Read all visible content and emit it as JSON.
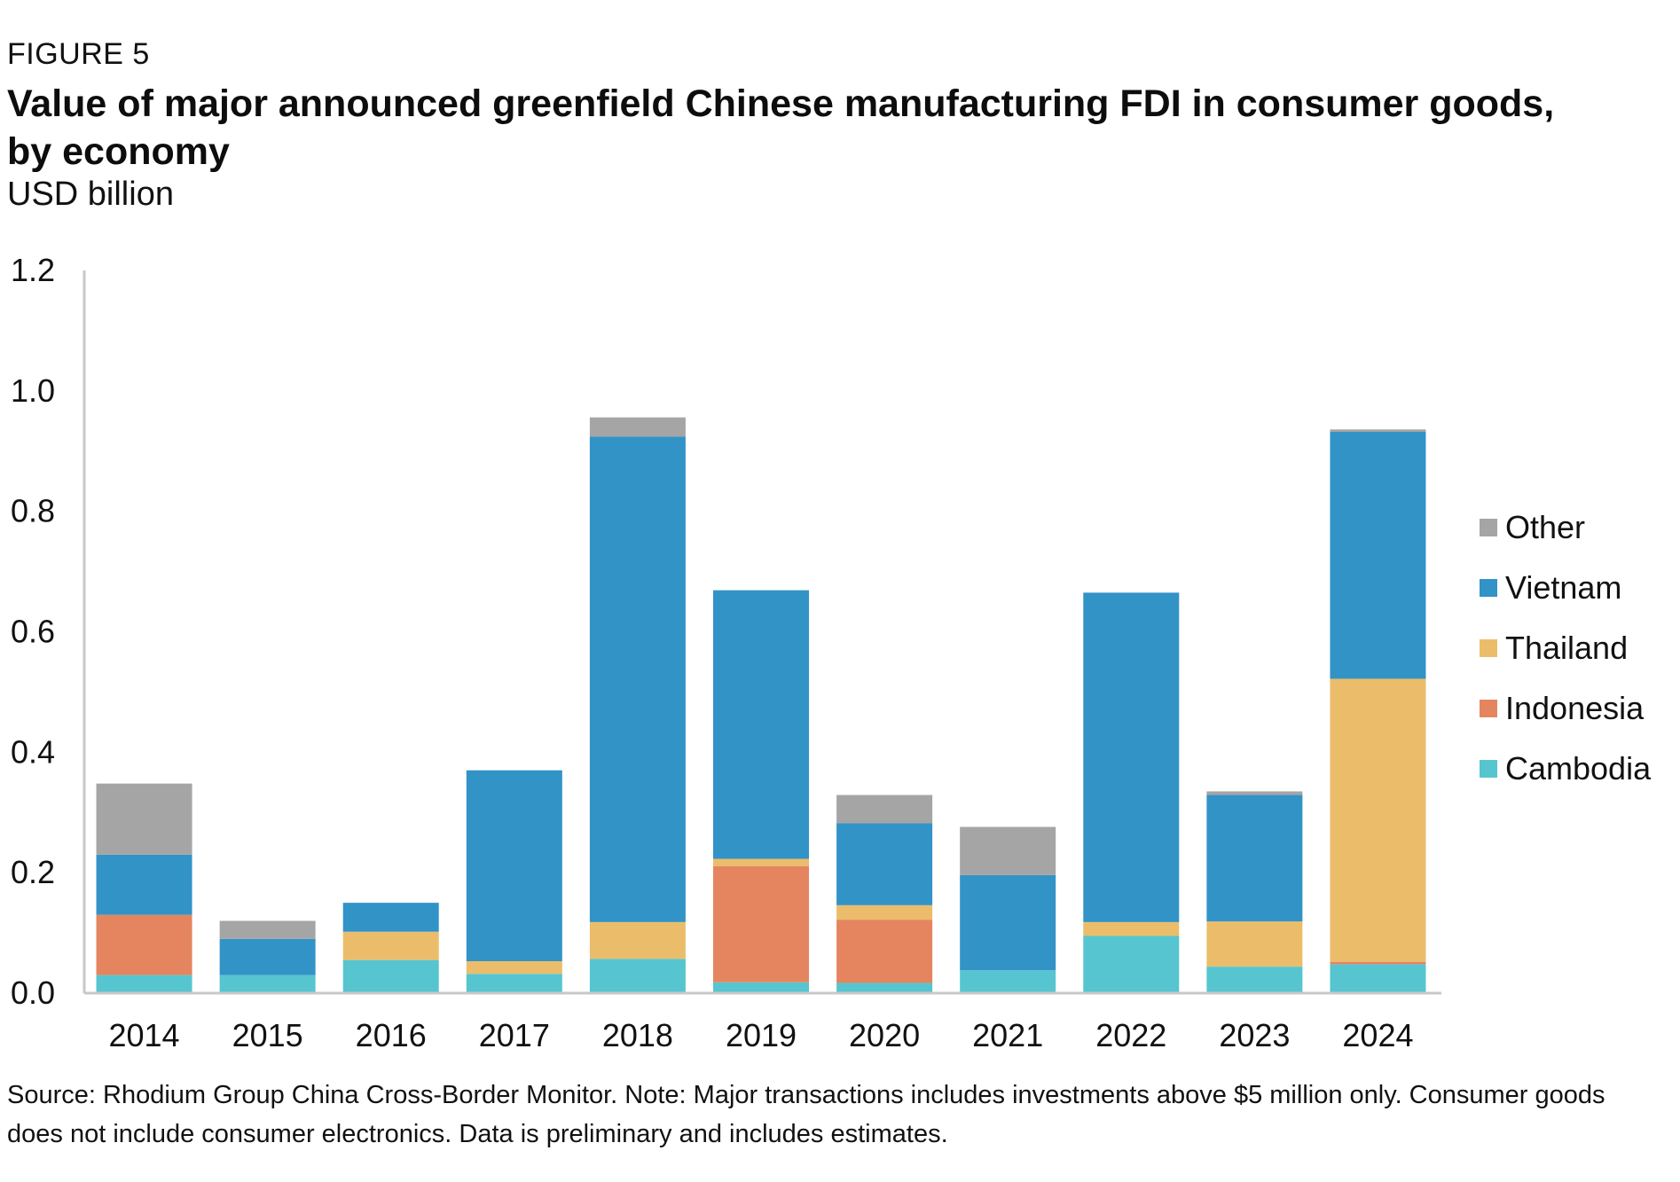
{
  "figure": {
    "label": "FIGURE 5",
    "title": "Value of major announced greenfield Chinese manufacturing FDI in consumer goods, by economy",
    "subtitle": "USD billion",
    "source": "Source: Rhodium Group China Cross-Border Monitor. Note: Major transactions includes investments above $5 million only. Consumer goods does not include consumer electronics. Data is preliminary and includes estimates."
  },
  "chart_data": {
    "type": "bar",
    "stacked": true,
    "title": "Value of major announced greenfield Chinese manufacturing FDI in consumer goods, by economy",
    "ylabel": "USD billion",
    "xlabel": "",
    "ylim": [
      0,
      1.2
    ],
    "yticks": [
      "0.0",
      "0.2",
      "0.4",
      "0.6",
      "0.8",
      "1.0",
      "1.2"
    ],
    "grid": false,
    "legend_position": "right",
    "categories": [
      "2014",
      "2015",
      "2016",
      "2017",
      "2018",
      "2019",
      "2020",
      "2021",
      "2022",
      "2023",
      "2024"
    ],
    "series": [
      {
        "name": "Cambodia",
        "color": "#56C5D0",
        "values": [
          0.03,
          0.03,
          0.055,
          0.032,
          0.057,
          0.018,
          0.017,
          0.038,
          0.095,
          0.044,
          0.048
        ]
      },
      {
        "name": "Indonesia",
        "color": "#E5855F",
        "values": [
          0.1,
          0.0,
          0.0,
          0.0,
          0.0,
          0.193,
          0.105,
          0.0,
          0.0,
          0.0,
          0.004
        ]
      },
      {
        "name": "Thailand",
        "color": "#EBBD6B",
        "values": [
          0.0,
          0.0,
          0.047,
          0.021,
          0.061,
          0.012,
          0.024,
          0.0,
          0.023,
          0.075,
          0.47
        ]
      },
      {
        "name": "Vietnam",
        "color": "#3293C7",
        "values": [
          0.1,
          0.06,
          0.048,
          0.317,
          0.806,
          0.446,
          0.136,
          0.158,
          0.547,
          0.21,
          0.41
        ]
      },
      {
        "name": "Other",
        "color": "#A5A5A5",
        "values": [
          0.118,
          0.03,
          0.0,
          0.0,
          0.032,
          0.0,
          0.047,
          0.08,
          0.0,
          0.006,
          0.004
        ]
      }
    ],
    "legend_order": [
      "Other",
      "Vietnam",
      "Thailand",
      "Indonesia",
      "Cambodia"
    ]
  }
}
